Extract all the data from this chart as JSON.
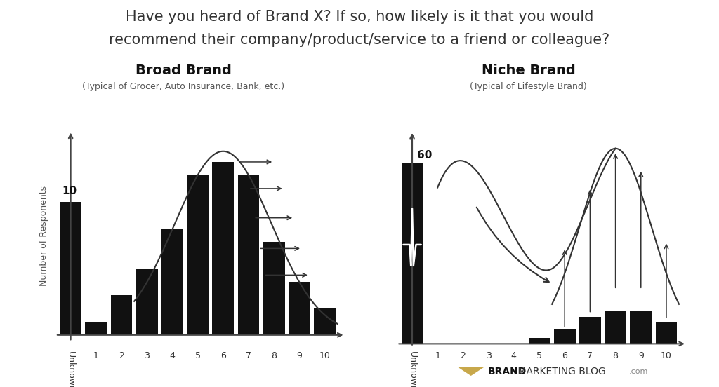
{
  "title_line1": "Have you heard of Brand X? If so, how likely is it that you would",
  "title_line2": "recommend their company/product/service to a friend or colleague?",
  "title_fontsize": 15,
  "bg_color": "#ffffff",
  "broad_title": "Broad Brand",
  "broad_subtitle": "(Typical of Grocer, Auto Insurance, Bank, etc.)",
  "niche_title": "Niche Brand",
  "niche_subtitle": "(Typical of Lifestyle Brand)",
  "ylabel": "Number of Responents",
  "broad_bars": [
    10,
    1,
    3,
    5,
    8,
    12,
    13,
    12,
    7,
    4,
    2
  ],
  "niche_bars": [
    60,
    0,
    0,
    0,
    0,
    2,
    5,
    9,
    11,
    11,
    7
  ],
  "categories": [
    "Unknown",
    "1",
    "2",
    "3",
    "4",
    "5",
    "6",
    "7",
    "8",
    "9",
    "10"
  ],
  "bar_color": "#111111",
  "curve_color": "#333333",
  "arrow_color": "#333333",
  "brand_logo_color": "#c8a84b",
  "text_color": "#333333"
}
